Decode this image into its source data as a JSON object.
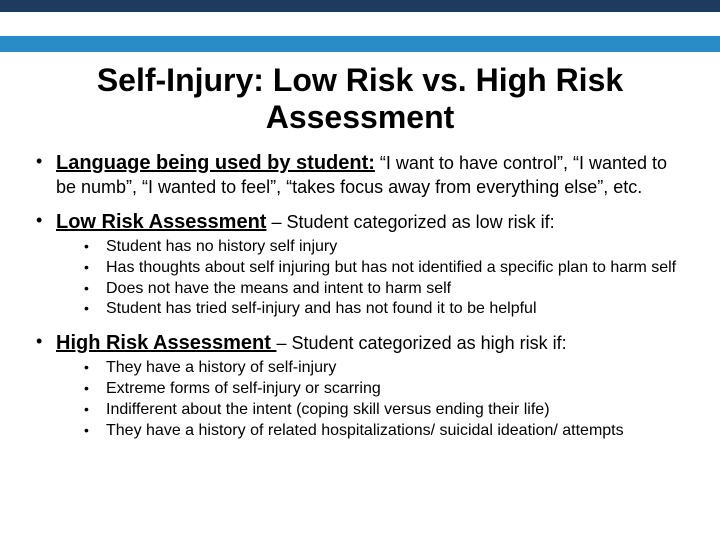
{
  "colors": {
    "dark_bar": "#1f3a5f",
    "blue_bar": "#2a8cc7",
    "background": "#ffffff",
    "text": "#000000"
  },
  "typography": {
    "title_fontsize": 32,
    "heading_fontsize": 20,
    "body_fontsize": 18,
    "sub_fontsize": 16,
    "font_family": "Arial"
  },
  "title": "Self-Injury: Low Risk vs. High Risk Assessment",
  "bullets": {
    "language": {
      "heading": "Language being used by student:",
      "text": " “I want to have control”, “I wanted to be numb”, “I wanted to feel”, “takes focus away from everything else”, etc."
    },
    "low_risk": {
      "heading": "Low Risk Assessment",
      "suffix": " – Student categorized as low risk if:",
      "items": [
        "Student has no history self injury",
        "Has thoughts about self injuring but has not identified a specific plan to harm self",
        "Does not have the means and intent to harm self",
        "Student has tried self-injury and has not found it to be helpful"
      ]
    },
    "high_risk": {
      "heading": "High Risk Assessment ",
      "suffix": "– Student categorized as high risk if:",
      "items": [
        "They have a history of self-injury",
        "Extreme forms of self-injury or scarring",
        "Indifferent about the intent (coping skill versus ending their life)",
        "They have a history of related hospitalizations/ suicidal ideation/ attempts"
      ]
    }
  }
}
